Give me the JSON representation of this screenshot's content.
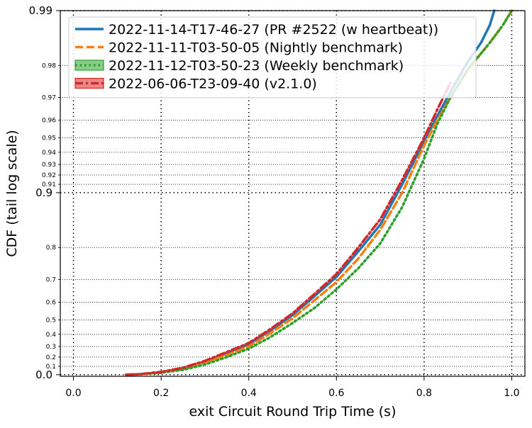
{
  "chart_data": {
    "type": "line",
    "title": "",
    "xlabel": "exit Circuit Round Trip Time (s)",
    "ylabel": "CDF (tail log scale)",
    "y_scale": "tail-log (transformed: -log10(1 - p))",
    "xlim": [
      -0.03,
      1.03
    ],
    "ylim": [
      -0.02,
      0.99
    ],
    "x_ticks": [
      {
        "value": 0.0,
        "label": "0.0"
      },
      {
        "value": 0.2,
        "label": "0.2"
      },
      {
        "value": 0.4,
        "label": "0.4"
      },
      {
        "value": 0.6,
        "label": "0.6"
      },
      {
        "value": 0.8,
        "label": "0.8"
      },
      {
        "value": 1.0,
        "label": "1.0"
      }
    ],
    "y_major_ticks": [
      {
        "value": 0.0,
        "label": "0.0"
      },
      {
        "value": 0.9,
        "label": "0.9"
      },
      {
        "value": 0.99,
        "label": "0.99"
      }
    ],
    "y_minor_ticks": [
      {
        "value": 0.1,
        "label": "0.1"
      },
      {
        "value": 0.2,
        "label": "0.2"
      },
      {
        "value": 0.3,
        "label": "0.3"
      },
      {
        "value": 0.4,
        "label": "0.4"
      },
      {
        "value": 0.5,
        "label": "0.5"
      },
      {
        "value": 0.6,
        "label": "0.6"
      },
      {
        "value": 0.7,
        "label": "0.7"
      },
      {
        "value": 0.8,
        "label": "0.8"
      },
      {
        "value": 0.91,
        "label": "0.91"
      },
      {
        "value": 0.92,
        "label": "0.92"
      },
      {
        "value": 0.93,
        "label": "0.93"
      },
      {
        "value": 0.94,
        "label": "0.94"
      },
      {
        "value": 0.95,
        "label": "0.95"
      },
      {
        "value": 0.96,
        "label": "0.96"
      },
      {
        "value": 0.97,
        "label": "0.97"
      },
      {
        "value": 0.98,
        "label": "0.98"
      }
    ],
    "grid": true,
    "legend_position": "top-left",
    "series": [
      {
        "name": "2022-11-14-T17-46-27 (PR #2522 (w heartbeat))",
        "color": "#1f77b4",
        "style": "solid",
        "points": [
          [
            0.12,
            0.0
          ],
          [
            0.15,
            0.005
          ],
          [
            0.2,
            0.03
          ],
          [
            0.25,
            0.08
          ],
          [
            0.3,
            0.15
          ],
          [
            0.35,
            0.24
          ],
          [
            0.4,
            0.32
          ],
          [
            0.45,
            0.43
          ],
          [
            0.5,
            0.53
          ],
          [
            0.55,
            0.63
          ],
          [
            0.6,
            0.71
          ],
          [
            0.65,
            0.79
          ],
          [
            0.7,
            0.85
          ],
          [
            0.75,
            0.91
          ],
          [
            0.8,
            0.948
          ],
          [
            0.83,
            0.962
          ],
          [
            0.86,
            0.972
          ],
          [
            0.9,
            0.981
          ],
          [
            0.93,
            0.985
          ],
          [
            0.95,
            0.988
          ],
          [
            0.96,
            0.99
          ]
        ]
      },
      {
        "name": "2022-11-11-T03-50-05 (Nightly benchmark)",
        "color": "#ff7f0e",
        "style": "dashed",
        "points": [
          [
            0.12,
            0.0
          ],
          [
            0.15,
            0.005
          ],
          [
            0.2,
            0.03
          ],
          [
            0.25,
            0.07
          ],
          [
            0.3,
            0.14
          ],
          [
            0.35,
            0.22
          ],
          [
            0.4,
            0.3
          ],
          [
            0.45,
            0.41
          ],
          [
            0.5,
            0.51
          ],
          [
            0.55,
            0.61
          ],
          [
            0.6,
            0.69
          ],
          [
            0.65,
            0.77
          ],
          [
            0.7,
            0.84
          ],
          [
            0.75,
            0.9
          ],
          [
            0.8,
            0.945
          ],
          [
            0.83,
            0.96
          ],
          [
            0.86,
            0.97
          ],
          [
            0.9,
            0.979
          ],
          [
            0.95,
            0.985
          ],
          [
            0.98,
            0.988
          ],
          [
            1.0,
            0.99
          ]
        ]
      },
      {
        "name": "2022-11-12-T03-50-23 (Weekly benchmark)",
        "color": "#2ca02c",
        "style": "dotted",
        "points": [
          [
            0.12,
            0.0
          ],
          [
            0.15,
            0.004
          ],
          [
            0.2,
            0.025
          ],
          [
            0.25,
            0.06
          ],
          [
            0.3,
            0.12
          ],
          [
            0.35,
            0.2
          ],
          [
            0.4,
            0.28
          ],
          [
            0.45,
            0.38
          ],
          [
            0.5,
            0.48
          ],
          [
            0.55,
            0.57
          ],
          [
            0.6,
            0.66
          ],
          [
            0.65,
            0.74
          ],
          [
            0.7,
            0.81
          ],
          [
            0.75,
            0.88
          ],
          [
            0.8,
            0.935
          ],
          [
            0.83,
            0.958
          ],
          [
            0.86,
            0.97
          ],
          [
            0.9,
            0.979
          ],
          [
            0.95,
            0.985
          ],
          [
            0.98,
            0.988
          ],
          [
            1.0,
            0.99
          ]
        ]
      },
      {
        "name": "2022-06-06-T23-09-40 (v2.1.0)",
        "color": "#d62728",
        "style": "dashdot",
        "points": [
          [
            0.12,
            0.0
          ],
          [
            0.15,
            0.006
          ],
          [
            0.2,
            0.035
          ],
          [
            0.25,
            0.085
          ],
          [
            0.3,
            0.16
          ],
          [
            0.35,
            0.25
          ],
          [
            0.4,
            0.33
          ],
          [
            0.45,
            0.44
          ],
          [
            0.5,
            0.54
          ],
          [
            0.55,
            0.64
          ],
          [
            0.6,
            0.72
          ],
          [
            0.65,
            0.8
          ],
          [
            0.7,
            0.86
          ],
          [
            0.75,
            0.915
          ],
          [
            0.8,
            0.95
          ],
          [
            0.83,
            0.965
          ],
          [
            0.86,
            0.975
          ]
        ]
      }
    ]
  }
}
